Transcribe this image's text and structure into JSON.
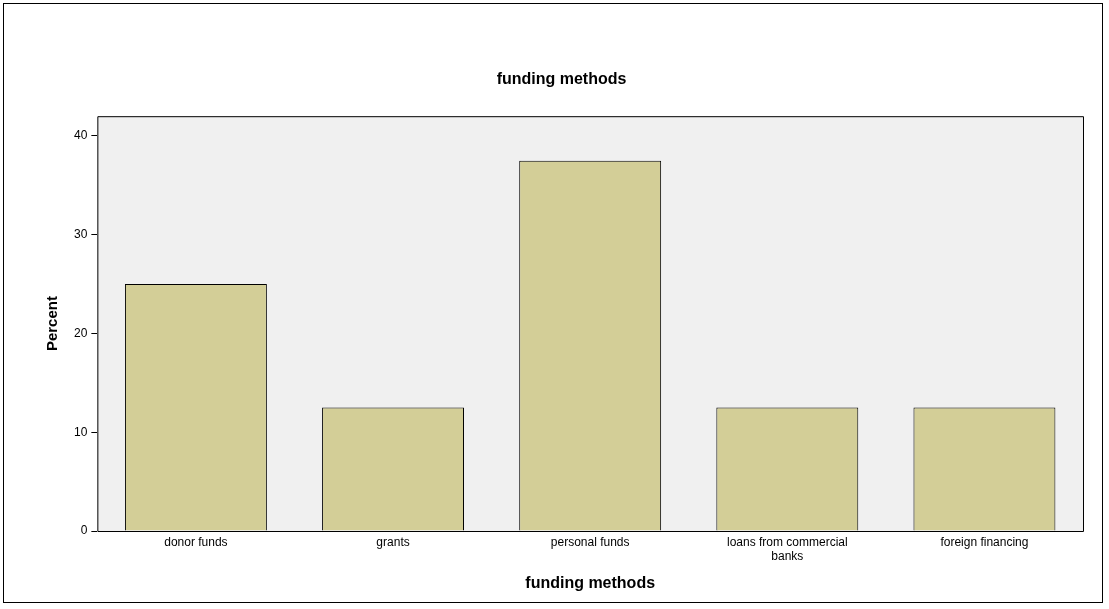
{
  "chart_data": {
    "type": "bar",
    "title": "funding methods",
    "xlabel": "funding methods",
    "ylabel": "Percent",
    "categories": [
      "donor funds",
      "grants",
      "personal funds",
      "loans from commercial banks",
      "foreign financing"
    ],
    "values": [
      25,
      12.5,
      37.5,
      12.5,
      12.5
    ],
    "color": "#d3ce97",
    "ylim": [
      0,
      42
    ],
    "yticks": [
      0,
      10,
      20,
      30,
      40
    ],
    "grid": false,
    "legend": false
  }
}
